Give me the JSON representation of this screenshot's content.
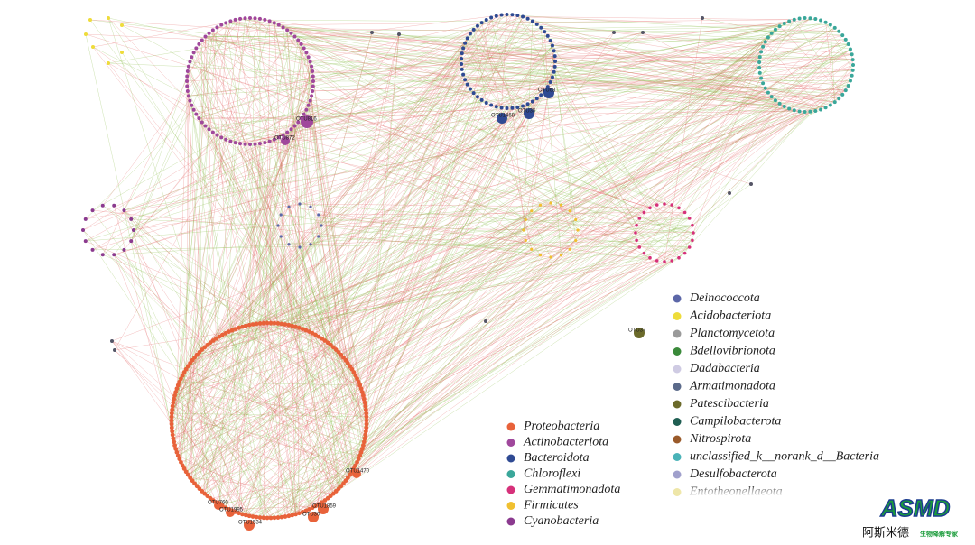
{
  "legend_left": [
    {
      "label": "Proteobacteria",
      "color": "#e8623a"
    },
    {
      "label": "Actinobacteriota",
      "color": "#a0489c"
    },
    {
      "label": "Bacteroidota",
      "color": "#2f4a93"
    },
    {
      "label": "Chloroflexi",
      "color": "#3aa79a"
    },
    {
      "label": "Gemmatimonadota",
      "color": "#d6317a"
    },
    {
      "label": "Firmicutes",
      "color": "#f0c030"
    },
    {
      "label": "Cyanobacteria",
      "color": "#8b3a8f"
    }
  ],
  "legend_right": [
    {
      "label": "Deinococcota",
      "color": "#5c67a8"
    },
    {
      "label": "Acidobacteriota",
      "color": "#eedc3a"
    },
    {
      "label": "Planctomycetota",
      "color": "#9a9a9a"
    },
    {
      "label": "Bdellovibrionota",
      "color": "#3a8a3a"
    },
    {
      "label": "Dadabacteria",
      "color": "#cfcbe3"
    },
    {
      "label": "Armatimonadota",
      "color": "#5b6a8a"
    },
    {
      "label": "Patescibacteria",
      "color": "#6b6a2a"
    },
    {
      "label": "Campilobacterota",
      "color": "#1f5e52"
    },
    {
      "label": "Nitrospirota",
      "color": "#9a5a2a"
    },
    {
      "label": "unclassified_k__norank_d__Bacteria",
      "color": "#4ab3b8"
    },
    {
      "label": "Desulfobacterota",
      "color": "#a0a0cc"
    },
    {
      "label": "Entotheonellaeota",
      "color": "#eee6a8"
    }
  ],
  "node_labels": [
    "OTU816",
    "OTU872",
    "OTU1468",
    "OTU35",
    "OTU68",
    "OTU37",
    "OTU1470",
    "OTU760",
    "OTU1995",
    "OTU1534",
    "OTU30",
    "OTU1859"
  ],
  "logo": {
    "title": "ASMD",
    "name": "阿斯米德",
    "slogan": "生物降解专家"
  }
}
